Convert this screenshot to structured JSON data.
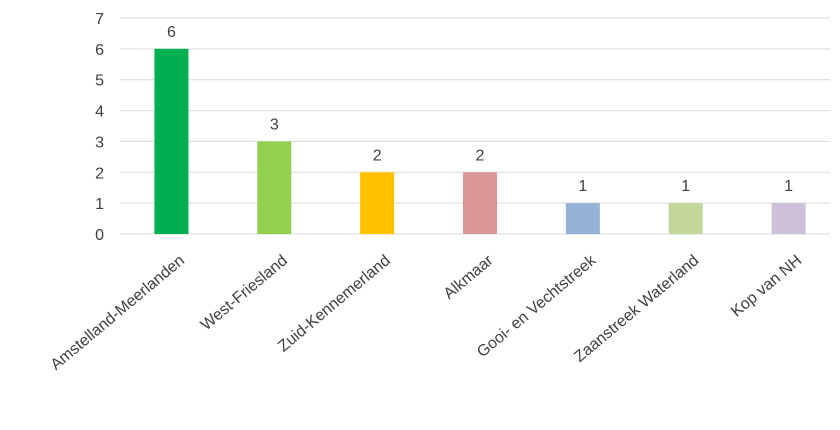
{
  "chart_data": {
    "type": "bar",
    "title": "",
    "xlabel": "",
    "ylabel": "",
    "ylim": [
      0,
      7
    ],
    "yticks": [
      0,
      1,
      2,
      3,
      4,
      5,
      6,
      7
    ],
    "grid": true,
    "legend": "none",
    "categories": [
      "Amstelland-Meerlanden",
      "West-Friesland",
      "Zuid-Kennemerland",
      "Alkmaar",
      "Gooi- en Vechtstreek",
      "Zaanstreek Waterland",
      "Kop van NH"
    ],
    "values": [
      6,
      3,
      2,
      2,
      1,
      1,
      1
    ],
    "colors": [
      "#00b050",
      "#92d050",
      "#ffc000",
      "#da9694",
      "#95b3d7",
      "#c4d79b",
      "#ccc0da"
    ]
  }
}
